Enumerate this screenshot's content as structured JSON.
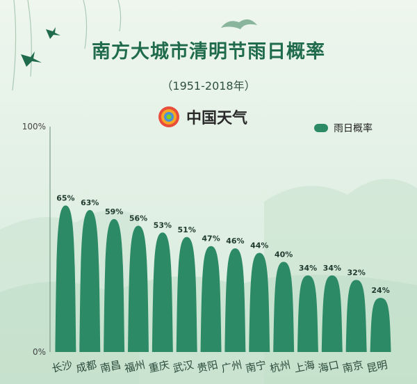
{
  "title": "南方大城市清明节雨日概率",
  "subtitle": "（1951-2018年）",
  "brand": {
    "name": "中国天气",
    "icon": "china-weather-logo"
  },
  "colors": {
    "bar": "#2d8a66",
    "title": "#1f6b4c",
    "axis": "#6b8c78"
  },
  "chart_data": {
    "type": "bar",
    "categories": [
      "长沙",
      "成都",
      "南昌",
      "福州",
      "重庆",
      "武汉",
      "贵阳",
      "广州",
      "南宁",
      "杭州",
      "上海",
      "海口",
      "南京",
      "昆明"
    ],
    "series": [
      {
        "name": "雨日概率",
        "values": [
          65,
          63,
          59,
          56,
          53,
          51,
          47,
          46,
          44,
          40,
          34,
          34,
          32,
          24
        ]
      }
    ],
    "data_labels": [
      "65%",
      "63%",
      "59%",
      "56%",
      "53%",
      "51%",
      "47%",
      "46%",
      "44%",
      "40%",
      "34%",
      "34%",
      "32%",
      "24%"
    ],
    "y_ticks": [
      "100%",
      "0%"
    ],
    "ylim": [
      0,
      100
    ],
    "legend": "top-right",
    "grid": false
  }
}
